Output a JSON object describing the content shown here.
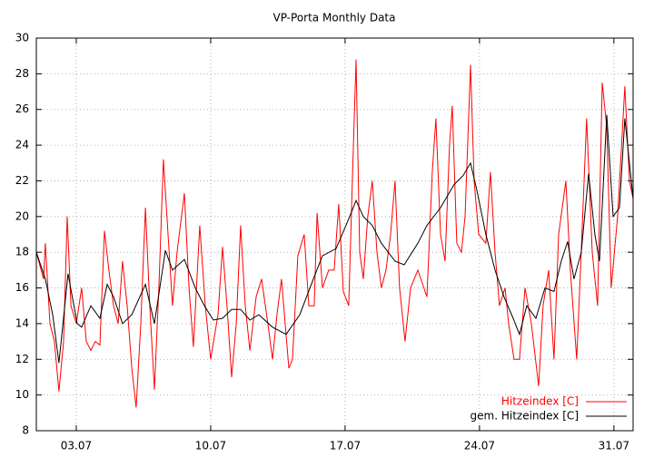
{
  "chart_data": {
    "type": "line",
    "title": "VP-Porta Monthly Data",
    "xlim": [
      0.92,
      32.0
    ],
    "ylim": [
      8,
      30
    ],
    "xticks": [
      {
        "value": 3,
        "label": "03.07"
      },
      {
        "value": 10,
        "label": "10.07"
      },
      {
        "value": 17,
        "label": "17.07"
      },
      {
        "value": 24,
        "label": "24.07"
      },
      {
        "value": 31,
        "label": "31.07"
      }
    ],
    "yticks": [
      8,
      10,
      12,
      14,
      16,
      18,
      20,
      22,
      24,
      26,
      28,
      30
    ],
    "grid": true,
    "legend": "lower right",
    "series": [
      {
        "name": "Hitzeindex [C]",
        "color": "#ff0000",
        "x": [
          0.92,
          1.3,
          1.39,
          1.63,
          1.86,
          2.1,
          2.34,
          2.53,
          2.72,
          3.0,
          3.28,
          3.52,
          3.76,
          3.99,
          4.23,
          4.47,
          4.7,
          4.94,
          5.18,
          5.41,
          5.65,
          5.89,
          6.12,
          6.36,
          6.6,
          6.83,
          7.07,
          7.3,
          7.54,
          7.78,
          8.01,
          8.25,
          8.63,
          8.87,
          9.1,
          9.43,
          9.72,
          10.0,
          10.38,
          10.62,
          10.85,
          11.09,
          11.33,
          11.56,
          11.8,
          12.04,
          12.37,
          12.65,
          12.98,
          13.22,
          13.45,
          13.69,
          14.07,
          14.26,
          14.54,
          14.87,
          15.11,
          15.39,
          15.54,
          15.82,
          16.15,
          16.43,
          16.67,
          16.91,
          17.19,
          17.38,
          17.57,
          17.76,
          17.95,
          18.18,
          18.42,
          18.66,
          18.89,
          19.13,
          19.37,
          19.6,
          19.84,
          20.12,
          20.41,
          20.79,
          21.26,
          21.54,
          21.73,
          21.97,
          22.21,
          22.44,
          22.58,
          22.82,
          23.06,
          23.25,
          23.53,
          23.72,
          23.96,
          24.33,
          24.57,
          24.81,
          25.04,
          25.33,
          25.52,
          25.8,
          26.08,
          26.37,
          26.7,
          27.08,
          27.31,
          27.6,
          27.88,
          28.12,
          28.5,
          28.73,
          29.06,
          29.3,
          29.58,
          29.87,
          30.15,
          30.39,
          30.63,
          30.86,
          31.19,
          31.57,
          31.81,
          32.0
        ],
        "values": [
          18,
          16.5,
          18.5,
          14,
          13,
          10.2,
          13,
          20,
          15,
          14,
          16,
          13,
          12.5,
          13,
          12.8,
          19.2,
          17,
          15,
          14,
          17.5,
          15,
          11.5,
          9.3,
          14,
          20.5,
          15,
          10.3,
          16,
          23.2,
          19,
          15,
          18,
          21.3,
          16,
          12.7,
          19.5,
          15,
          12,
          14.5,
          18.3,
          15,
          11,
          14,
          19.5,
          15,
          12.5,
          15.5,
          16.5,
          14,
          12,
          14.5,
          16.5,
          11.5,
          12,
          17.8,
          19,
          15,
          15,
          20.2,
          16,
          17,
          17,
          20.7,
          15.8,
          15,
          22,
          28.8,
          18,
          16.5,
          20,
          22,
          18,
          16,
          17,
          19,
          22,
          16,
          13,
          16,
          17,
          15.5,
          22.5,
          25.5,
          19,
          17.5,
          24,
          26.2,
          18.5,
          18,
          20,
          28.5,
          22,
          19,
          18.5,
          22.5,
          18,
          15,
          16,
          14,
          12,
          12,
          16,
          14,
          10.5,
          15,
          17,
          12,
          19,
          22,
          17,
          12,
          18,
          25.5,
          18,
          15,
          27.5,
          25,
          16,
          20,
          27.3,
          22,
          21
        ]
      },
      {
        "name": "gem. Hitzeindex [C]",
        "color": "#000000",
        "x": [
          0.92,
          1.39,
          1.77,
          2.1,
          2.57,
          3.05,
          3.28,
          3.76,
          4.23,
          4.61,
          4.94,
          5.41,
          5.89,
          6.6,
          7.07,
          7.64,
          8.01,
          8.63,
          9.2,
          9.67,
          10.14,
          10.62,
          11.09,
          11.56,
          12.04,
          12.51,
          13.22,
          13.93,
          14.64,
          15.35,
          15.82,
          16.53,
          17.24,
          17.57,
          17.95,
          18.42,
          18.89,
          19.6,
          20.08,
          20.79,
          21.26,
          21.97,
          22.68,
          23.15,
          23.53,
          23.86,
          24.33,
          24.81,
          25.28,
          25.75,
          26.08,
          26.46,
          26.94,
          27.41,
          27.88,
          28.26,
          28.59,
          28.92,
          29.3,
          29.68,
          30.01,
          30.25,
          30.63,
          30.96,
          31.29,
          31.57,
          32.0
        ],
        "values": [
          18,
          16.5,
          14.5,
          11.8,
          16.8,
          14,
          13.8,
          15,
          14.3,
          16.2,
          15.5,
          14,
          14.5,
          16.2,
          14,
          18.1,
          17,
          17.6,
          16,
          15,
          14.2,
          14.3,
          14.8,
          14.8,
          14.2,
          14.5,
          13.8,
          13.4,
          14.5,
          16.5,
          17.8,
          18.2,
          20,
          20.9,
          20,
          19.5,
          18.5,
          17.5,
          17.3,
          18.5,
          19.5,
          20.5,
          21.8,
          22.3,
          23,
          21.5,
          19,
          17,
          15.5,
          14.3,
          13.4,
          15,
          14.3,
          16,
          15.8,
          17.5,
          18.6,
          16.5,
          18,
          22.4,
          19,
          17.5,
          25.7,
          20,
          20.5,
          25.5,
          21
        ]
      }
    ]
  }
}
